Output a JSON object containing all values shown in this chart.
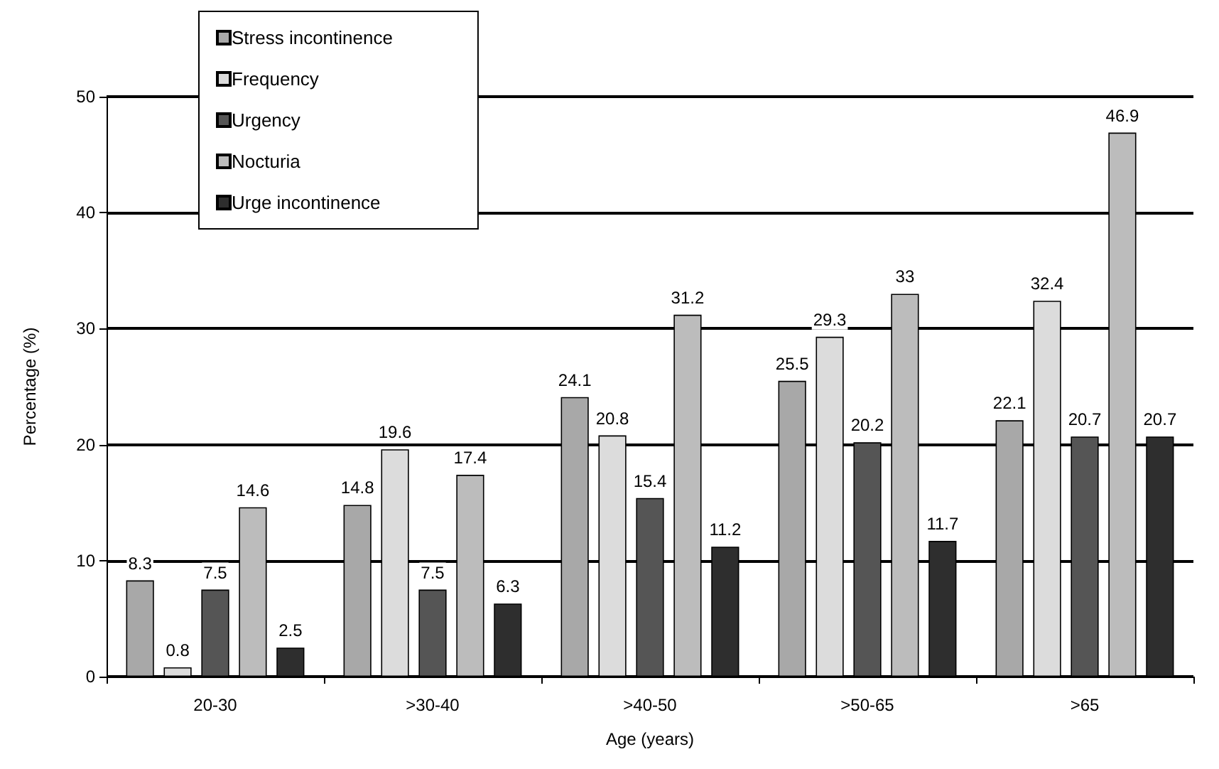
{
  "chart_data": {
    "type": "bar",
    "xlabel": "Age (years)",
    "ylabel": "Percentage (%)",
    "categories": [
      "20-30",
      ">30-40",
      ">40-50",
      ">50-65",
      ">65"
    ],
    "series": [
      {
        "name": "Stress incontinence",
        "color": "#a8a8a8",
        "values": [
          8.3,
          14.8,
          24.1,
          25.5,
          22.1
        ]
      },
      {
        "name": "Frequency",
        "color": "#dcdcdc",
        "values": [
          0.8,
          19.6,
          20.8,
          29.3,
          32.4
        ]
      },
      {
        "name": "Urgency",
        "color": "#555555",
        "values": [
          7.5,
          7.5,
          15.4,
          20.2,
          20.7
        ]
      },
      {
        "name": "Nocturia",
        "color": "#bcbcbc",
        "values": [
          14.6,
          17.4,
          31.2,
          33,
          46.9
        ]
      },
      {
        "name": "Urge incontinence",
        "color": "#2e2e2e",
        "values": [
          2.5,
          6.3,
          11.2,
          11.7,
          20.7
        ]
      }
    ],
    "ylim": [
      0,
      50
    ],
    "yticks": [
      0,
      10,
      20,
      30,
      40,
      50
    ],
    "grid": "y",
    "legend": "top left",
    "data_labels": true
  }
}
